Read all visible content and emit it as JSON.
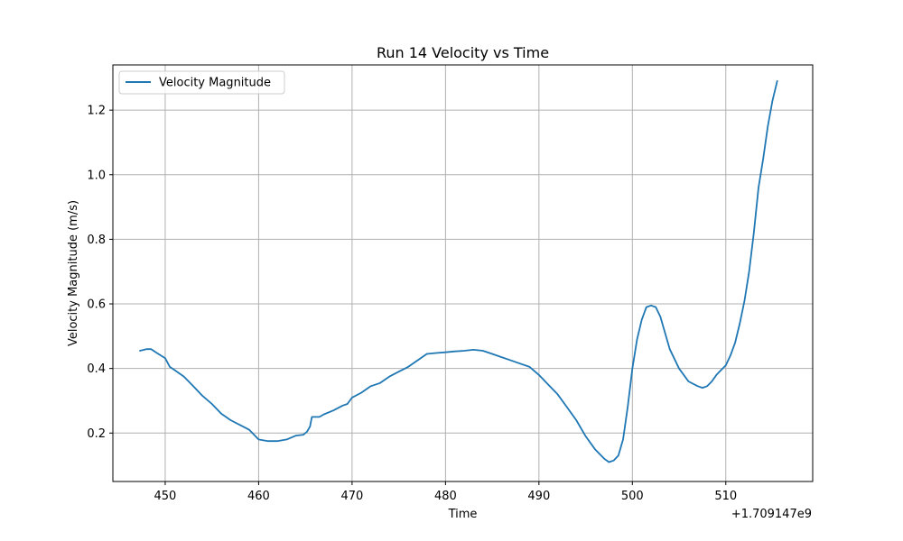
{
  "chart_data": {
    "type": "line",
    "title": "Run 14 Velocity vs Time",
    "xlabel": "Time",
    "ylabel": "Velocity Magnitude (m/s)",
    "x_offset_label": "+1.709147e9",
    "xlim": [
      444.4,
      519.3
    ],
    "ylim": [
      0.05,
      1.34
    ],
    "xticks": [
      450,
      460,
      470,
      480,
      490,
      500,
      510
    ],
    "yticks": [
      0.2,
      0.4,
      0.6,
      0.8,
      1.0,
      1.2
    ],
    "ytick_labels": [
      "0.2",
      "0.4",
      "0.6",
      "0.8",
      "1.0",
      "1.2"
    ],
    "grid": true,
    "legend_position": "upper-left",
    "series": [
      {
        "name": "Velocity Magnitude",
        "color": "#1f77b4",
        "x": [
          447.3,
          448.0,
          448.5,
          449.0,
          450.0,
          450.5,
          451.0,
          452.0,
          453.0,
          454.0,
          455.0,
          456.0,
          457.0,
          458.0,
          459.0,
          460.0,
          461.0,
          462.0,
          463.0,
          464.0,
          464.8,
          465.2,
          465.5,
          465.7,
          466.5,
          467.0,
          468.0,
          469.0,
          469.5,
          470.0,
          471.0,
          472.0,
          473.0,
          474.0,
          475.0,
          476.0,
          477.0,
          478.0,
          479.0,
          480.0,
          481.0,
          482.0,
          483.0,
          484.0,
          485.0,
          486.0,
          487.0,
          488.0,
          489.0,
          490.0,
          491.0,
          492.0,
          493.0,
          494.0,
          495.0,
          496.0,
          497.0,
          497.5,
          498.0,
          498.5,
          499.0,
          499.5,
          500.0,
          500.5,
          501.0,
          501.5,
          502.0,
          502.5,
          503.0,
          503.5,
          504.0,
          505.0,
          506.0,
          507.0,
          507.5,
          508.0,
          508.5,
          509.0,
          509.5,
          510.0,
          510.5,
          511.0,
          511.5,
          512.0,
          512.5,
          513.0,
          513.5,
          514.0,
          514.5,
          515.0,
          515.5
        ],
        "y": [
          0.455,
          0.46,
          0.46,
          0.45,
          0.432,
          0.405,
          0.395,
          0.375,
          0.345,
          0.315,
          0.29,
          0.26,
          0.24,
          0.225,
          0.21,
          0.18,
          0.175,
          0.175,
          0.18,
          0.192,
          0.195,
          0.205,
          0.22,
          0.25,
          0.25,
          0.258,
          0.27,
          0.285,
          0.29,
          0.31,
          0.325,
          0.345,
          0.355,
          0.375,
          0.39,
          0.405,
          0.425,
          0.445,
          0.448,
          0.45,
          0.453,
          0.455,
          0.458,
          0.455,
          0.445,
          0.435,
          0.425,
          0.415,
          0.405,
          0.38,
          0.35,
          0.32,
          0.28,
          0.24,
          0.19,
          0.15,
          0.12,
          0.11,
          0.115,
          0.13,
          0.18,
          0.28,
          0.4,
          0.49,
          0.55,
          0.59,
          0.595,
          0.59,
          0.56,
          0.51,
          0.46,
          0.4,
          0.36,
          0.345,
          0.34,
          0.345,
          0.36,
          0.38,
          0.395,
          0.41,
          0.44,
          0.48,
          0.54,
          0.61,
          0.7,
          0.82,
          0.96,
          1.05,
          1.15,
          1.23,
          1.29
        ]
      }
    ]
  }
}
